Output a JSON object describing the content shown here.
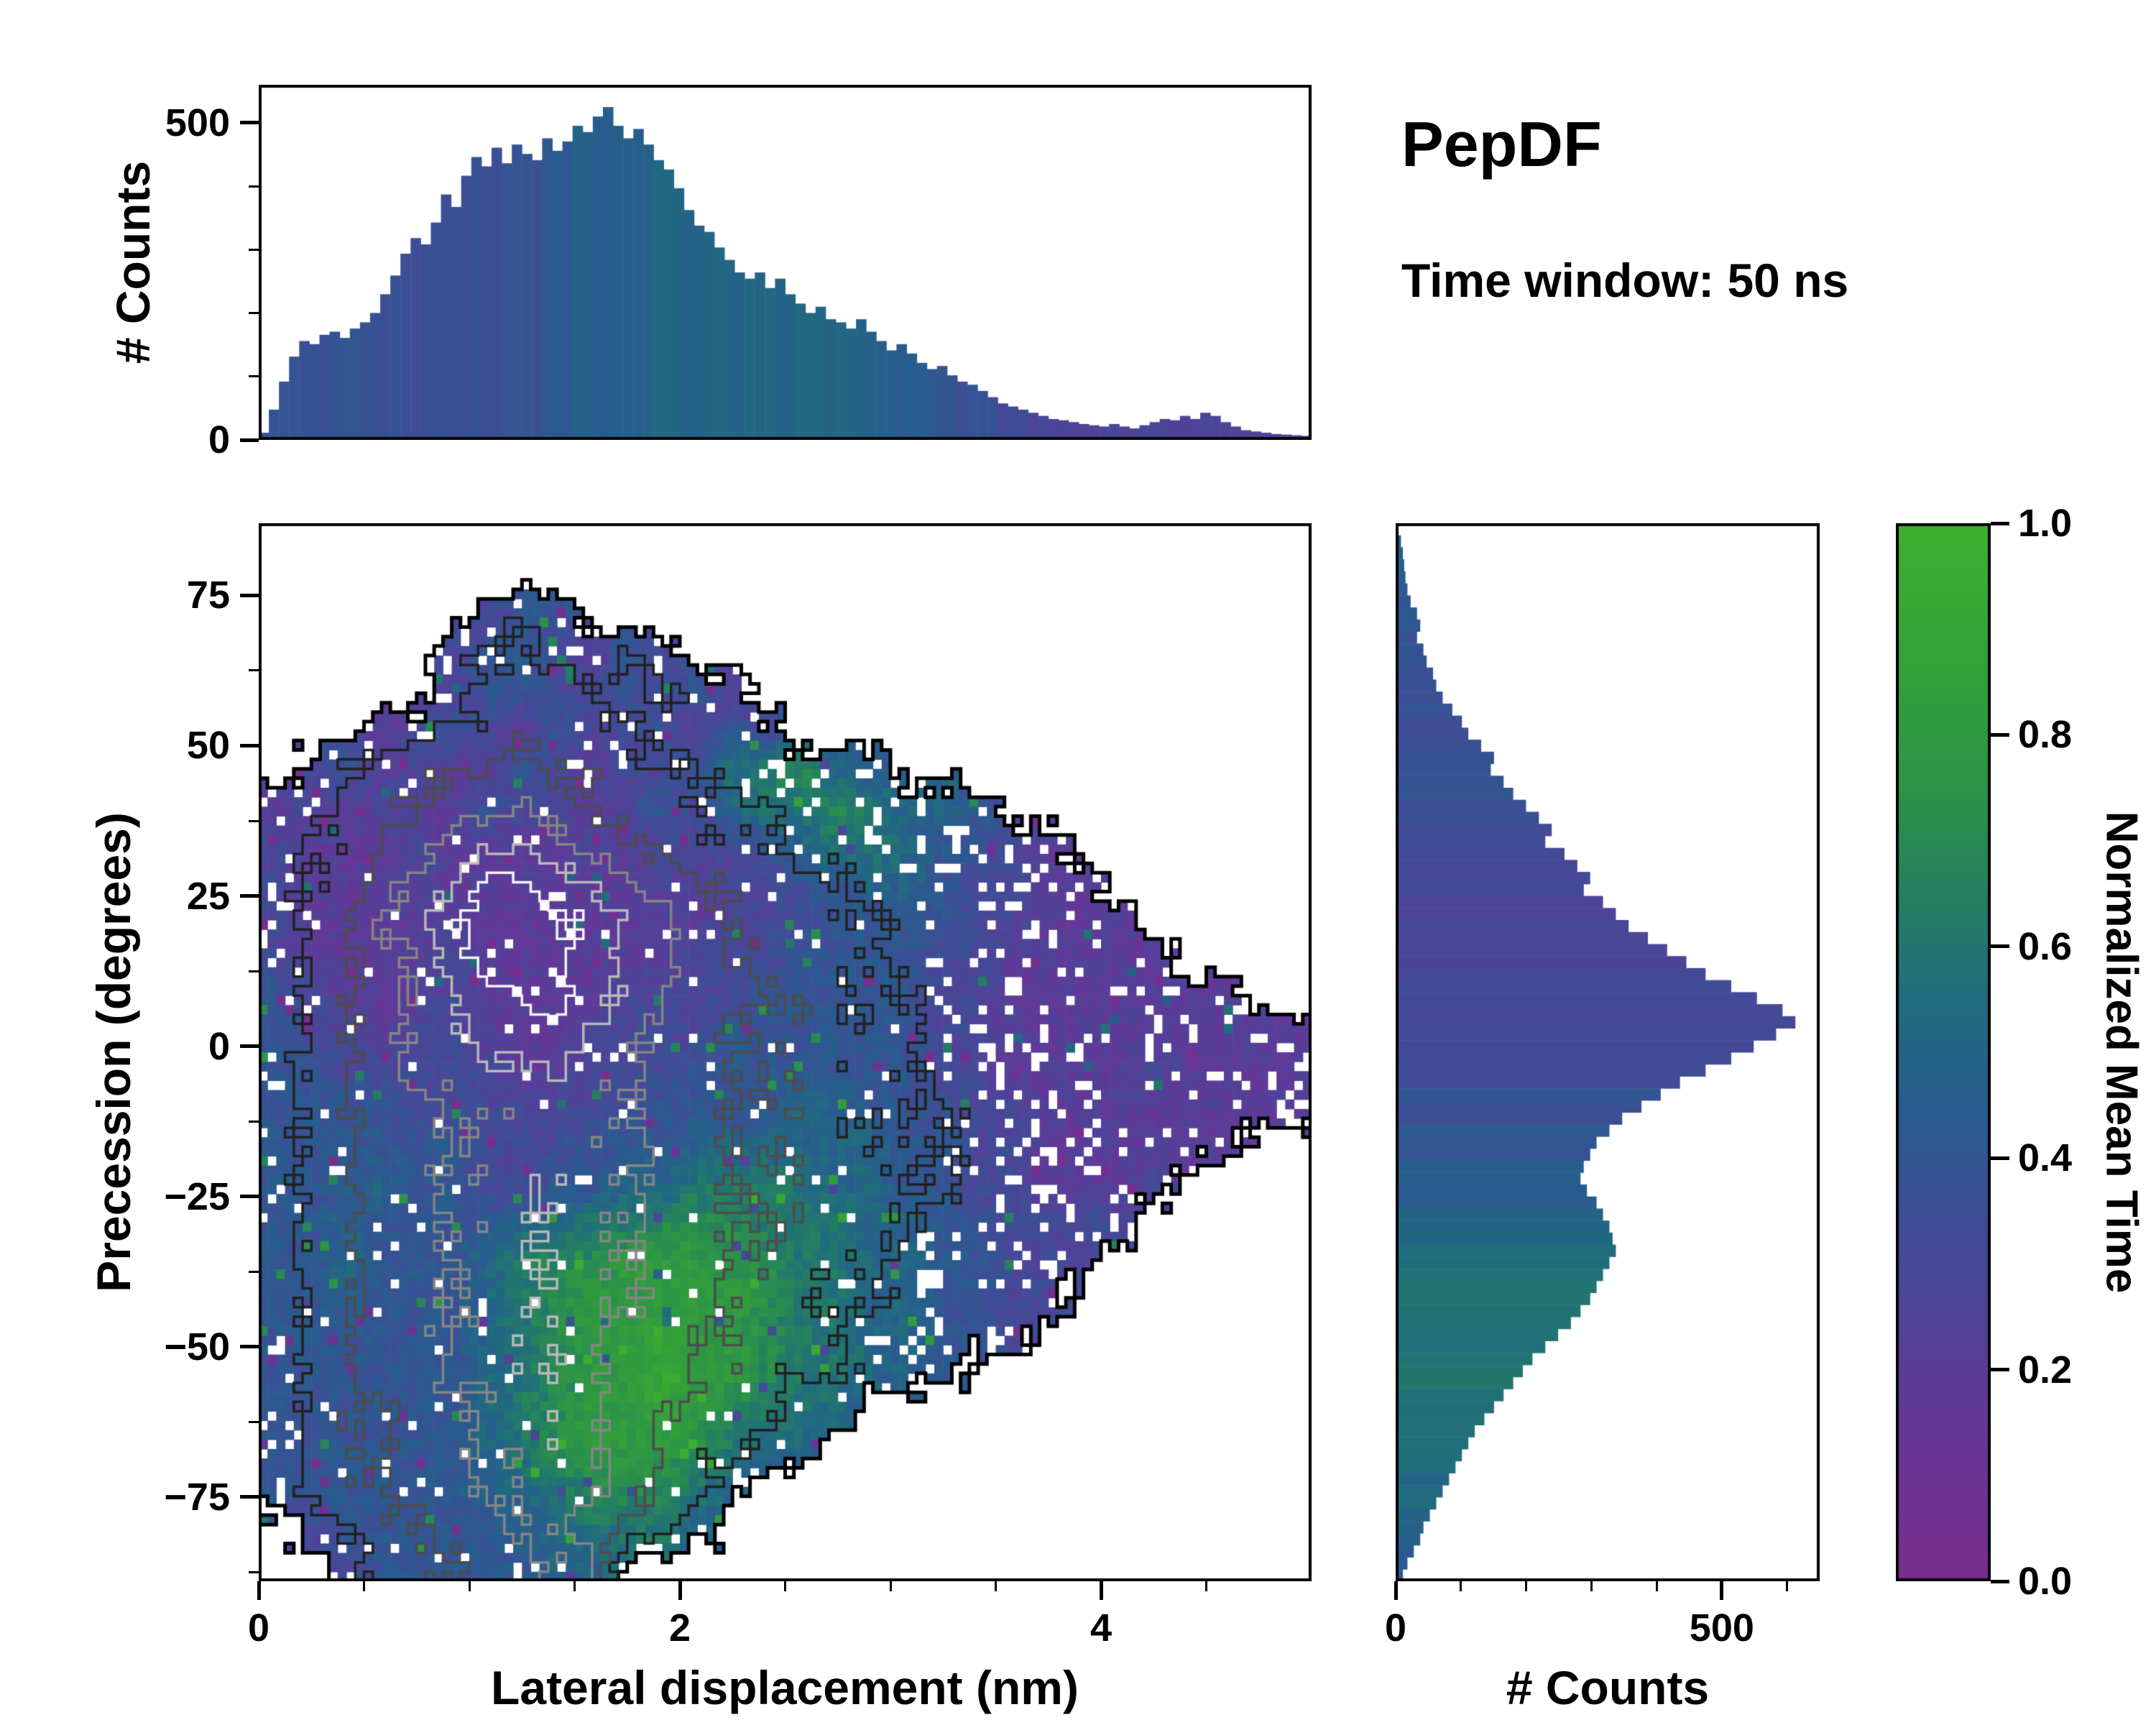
{
  "annotations": {
    "title": "PepDF",
    "subtitle": "Time window: 50 ns"
  },
  "colormap": {
    "anchors": [
      {
        "v": 0.0,
        "c": [
          122,
          45,
          140
        ]
      },
      {
        "v": 0.15,
        "c": [
          100,
          55,
          152
        ]
      },
      {
        "v": 0.3,
        "c": [
          70,
          72,
          152
        ]
      },
      {
        "v": 0.45,
        "c": [
          40,
          92,
          142
        ]
      },
      {
        "v": 0.55,
        "c": [
          32,
          108,
          126
        ]
      },
      {
        "v": 0.65,
        "c": [
          36,
          128,
          96
        ]
      },
      {
        "v": 0.75,
        "c": [
          44,
          148,
          70
        ]
      },
      {
        "v": 0.9,
        "c": [
          54,
          164,
          54
        ]
      },
      {
        "v": 1.0,
        "c": [
          62,
          177,
          46
        ]
      }
    ]
  },
  "chart_data": [
    {
      "id": "top_histogram",
      "type": "bar",
      "orientation": "vertical",
      "ylabel": "# Counts",
      "x_range": [
        0,
        5.0
      ],
      "y_range": [
        0,
        560
      ],
      "y_ticks": [
        {
          "v": 0,
          "label": "0"
        },
        {
          "v": 500,
          "label": "500"
        }
      ],
      "y_minor_ticks": [
        100,
        200,
        300,
        400
      ],
      "bins": 104,
      "counts": [
        8,
        45,
        90,
        130,
        155,
        150,
        165,
        170,
        160,
        175,
        185,
        200,
        230,
        260,
        295,
        320,
        310,
        345,
        390,
        370,
        420,
        450,
        435,
        465,
        440,
        470,
        455,
        445,
        480,
        460,
        475,
        500,
        490,
        515,
        530,
        500,
        480,
        495,
        470,
        445,
        430,
        400,
        365,
        340,
        330,
        305,
        285,
        265,
        255,
        265,
        240,
        255,
        230,
        215,
        200,
        210,
        190,
        185,
        175,
        190,
        170,
        155,
        140,
        150,
        135,
        120,
        110,
        115,
        100,
        90,
        85,
        75,
        65,
        55,
        50,
        45,
        40,
        35,
        30,
        28,
        25,
        22,
        20,
        18,
        22,
        18,
        15,
        20,
        25,
        30,
        28,
        35,
        30,
        40,
        35,
        25,
        18,
        12,
        10,
        8,
        6,
        5,
        4,
        3
      ]
    },
    {
      "id": "main_heatmap",
      "type": "heatmap",
      "xlabel": "Lateral displacement (nm)",
      "ylabel": "Precession (degrees)",
      "x_range": [
        0,
        5.0
      ],
      "y_range": [
        -89,
        87
      ],
      "x_ticks": [
        {
          "v": 0,
          "label": "0"
        },
        {
          "v": 2,
          "label": "2"
        },
        {
          "v": 4,
          "label": "4"
        }
      ],
      "x_minor_ticks": [
        0.5,
        1,
        1.5,
        2.5,
        3,
        3.5,
        4.5
      ],
      "y_ticks": [
        {
          "v": 75,
          "label": "75"
        },
        {
          "v": 50,
          "label": "50"
        },
        {
          "v": 25,
          "label": "25"
        },
        {
          "v": 0,
          "label": "0"
        },
        {
          "v": -25,
          "label": "−25"
        },
        {
          "v": -50,
          "label": "−50"
        },
        {
          "v": -75,
          "label": "−75"
        }
      ],
      "y_minor_ticks": [
        62.5,
        37.5,
        12.5,
        -12.5,
        -37.5,
        -62.5,
        -87.5
      ],
      "grid_cols": 30,
      "grid_rows": 28,
      "values_encoding": "normalized mean time: char 0-9 = value*10, dot = no data; rows top (y=87) to bottom (y=-89), cols left (x=0) to right (x=5)",
      "values": [
        "..............................",
        "..............................",
        "......344.....................",
        ".....3443243..................",
        ".....244334342................",
        "...234324334243...............",
        ".34232243233466754............",
        "232322433234356676554.........",
        "32223222232333456654432.......",
        "322232222223233445543322......",
        "3222222222222333444433222.....",
        "32222322222233344443322222....",
        "4322232222333344444332222222..",
        "43323322233334444443322222222.",
        "443333322333444444433222232222",
        "444433333344444554443322222222",
        "4444443334445555554433222222..",
        "44454433445566665544332223....",
        "4454444556677766655443333.....",
        "445444567788877665544333......",
        "44544456788888766554433.......",
        "4444445678898876655443........",
        "44444456788988766554..........",
        "44444456788987665.............",
        "4444445678887655..............",
        "44444455677765................",
        ".344444556665.................",
        "..34444455...................."
      ],
      "density_encoding": "relative 2D counts: char 0-9, dot = no data",
      "density": [
        "..............................",
        "..............................",
        "......121.....................",
        ".....1221121..................",
        ".....122321211................",
        "...112232221111...............",
        ".12233343322211111............",
        "112334454332222111111.........",
        "12234566543322211111111.......",
        "122456887654332221111111......",
        "1235679987654332221111111.....",
        "12345789876543322211111111....",
        "1234567887654433222111111111..",
        "123456777654433322211111111111",
        "123455666554433322211111111111",
        "123445556554433322221111111111",
        "1234455565544333222211111111..",
        "12344556655443332222111111....",
        "1234455665544333222111111.....",
        "123445566554433222111111......",
        "12344556655443322211111.......",
        "1234455665443322211111........",
        "12344556654433222111..........",
        "12334455654332211.............",
        "1233445565432211..............",
        "12334455654321................",
        ".123344554321.................",
        "..12334455...................."
      ],
      "contour_levels": [
        {
          "t": 0.5,
          "color": "#000000",
          "width": 5
        },
        {
          "t": 1.7,
          "color": "#212121",
          "width": 3.5
        },
        {
          "t": 3.2,
          "color": "#4d4d4d",
          "width": 3.5
        },
        {
          "t": 4.7,
          "color": "#858585",
          "width": 3.5
        },
        {
          "t": 6.2,
          "color": "#b9b9b9",
          "width": 3.5
        },
        {
          "t": 7.6,
          "color": "#f4f4f4",
          "width": 3.5
        }
      ]
    },
    {
      "id": "right_histogram",
      "type": "bar",
      "orientation": "horizontal",
      "xlabel": "# Counts",
      "x_range": [
        0,
        650
      ],
      "y_range": [
        -89,
        87
      ],
      "x_ticks": [
        {
          "v": 0,
          "label": "0"
        },
        {
          "v": 500,
          "label": "500"
        }
      ],
      "x_minor_ticks": [
        100,
        200,
        300,
        400,
        600
      ],
      "bins": 88,
      "bin_start": 87,
      "bin_step": -2,
      "counts": [
        0,
        5,
        8,
        10,
        12,
        15,
        20,
        30,
        35,
        30,
        40,
        45,
        55,
        60,
        70,
        85,
        100,
        110,
        130,
        150,
        145,
        165,
        180,
        200,
        220,
        240,
        230,
        260,
        280,
        300,
        290,
        320,
        340,
        360,
        390,
        420,
        450,
        480,
        520,
        560,
        600,
        620,
        590,
        555,
        520,
        480,
        440,
        410,
        380,
        350,
        330,
        310,
        300,
        290,
        285,
        295,
        310,
        320,
        330,
        335,
        340,
        330,
        320,
        310,
        300,
        285,
        270,
        250,
        230,
        210,
        195,
        180,
        165,
        150,
        135,
        120,
        110,
        100,
        90,
        80,
        70,
        60,
        50,
        40,
        35,
        25,
        15,
        8
      ]
    },
    {
      "id": "colorbar",
      "type": "colorbar",
      "label": "Normalized Mean Time",
      "range": [
        0,
        1
      ],
      "ticks": [
        {
          "v": 1.0,
          "label": "1.0"
        },
        {
          "v": 0.8,
          "label": "0.8"
        },
        {
          "v": 0.6,
          "label": "0.6"
        },
        {
          "v": 0.4,
          "label": "0.4"
        },
        {
          "v": 0.2,
          "label": "0.2"
        },
        {
          "v": 0.0,
          "label": "0.0"
        }
      ]
    }
  ]
}
